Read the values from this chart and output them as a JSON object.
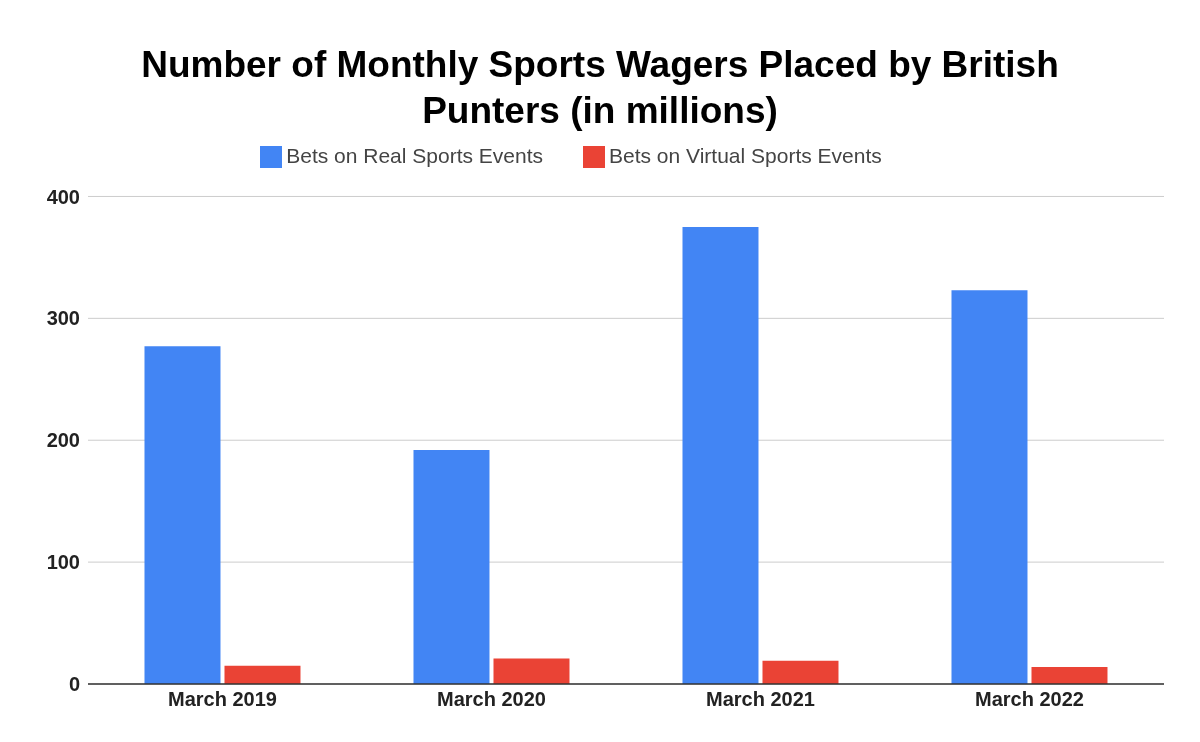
{
  "chart_data": {
    "type": "bar",
    "title": "Number of Monthly Sports Wagers Placed by British Punters (in millions)",
    "categories": [
      "March 2019",
      "March 2020",
      "March 2021",
      "March 2022"
    ],
    "series": [
      {
        "name": "Bets on Real Sports Events",
        "color": "#4285f4",
        "values": [
          277,
          192,
          375,
          323
        ]
      },
      {
        "name": "Bets on Virtual Sports Events",
        "color": "#ea4335",
        "values": [
          15,
          21,
          19,
          14
        ]
      }
    ],
    "ylim": [
      0,
      400
    ],
    "yticks": [
      0,
      100,
      200,
      300,
      400
    ],
    "grid": "y",
    "legend": "top"
  }
}
